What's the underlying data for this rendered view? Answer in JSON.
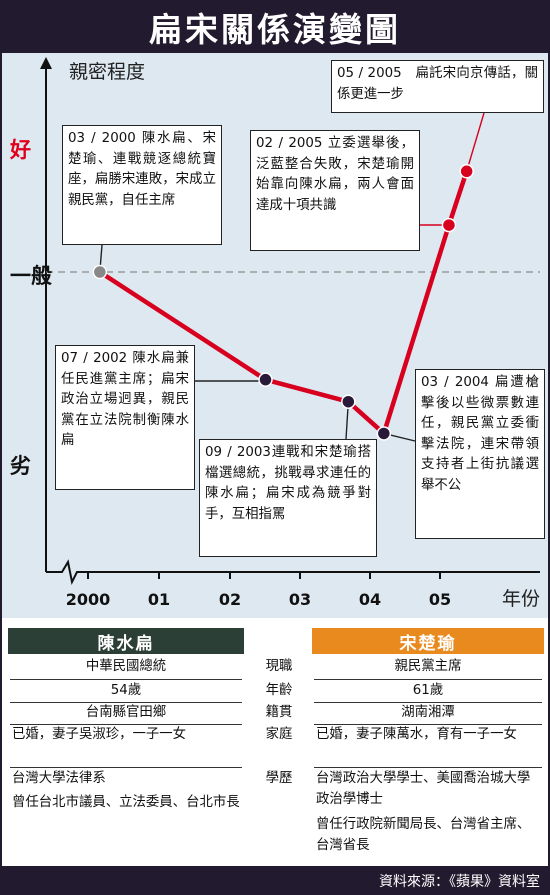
{
  "title": "扁宋關係演變圖",
  "chart_data": {
    "type": "line",
    "ylabel": "親密程度",
    "xlabel": "年份",
    "x_ticks": [
      "2000",
      "01",
      "02",
      "03",
      "04",
      "05"
    ],
    "y_levels": [
      "好",
      "一般",
      "劣"
    ],
    "xlim": [
      "2000-01",
      "2005-12"
    ],
    "ylim": [
      -1.8,
      1.5
    ],
    "reference_line": {
      "y": 0,
      "style": "dashed"
    },
    "points": [
      {
        "x": "2000-03",
        "y": 0.0
      },
      {
        "x": "2002-07",
        "y": -0.78
      },
      {
        "x": "2003-09",
        "y": -0.94
      },
      {
        "x": "2004-03",
        "y": -1.17
      },
      {
        "x": "2005-02",
        "y": 0.34
      },
      {
        "x": "2005-05",
        "y": 0.73
      }
    ],
    "colors": {
      "line": "#d8001f",
      "start_point": "#888888",
      "point": "#2a1a3a"
    }
  },
  "annotations": [
    "03 / 2000 陳水扁、宋楚瑜、連戰競逐總統寶座，扁勝宋連敗，宋成立親民黨，自任主席",
    "07 / 2002 陳水扁兼任民進黨主席；扁宋政治立場迥異，親民黨在立法院制衡陳水扁",
    "09 / 2003連戰和宋楚瑜搭檔選總統，挑戰尋求連任的陳水扁；扁宋成為競爭對手，互相指罵",
    "03 / 2004 扁遭槍擊後以些微票數連任，親民黨立委衝擊法院，連宋帶領支持者上街抗議選舉不公",
    "02 / 2005 立委選舉後，泛藍整合失敗，宋楚瑜開始靠向陳水扁，兩人會面達成十項共識",
    "05 / 2005　扁託宋向京傳話，關係更進一步"
  ],
  "profile": {
    "left_name": "陳水扁",
    "right_name": "宋楚瑜",
    "rows": [
      {
        "label": "現職",
        "left": "中華民國總統",
        "right": "親民黨主席"
      },
      {
        "label": "年齡",
        "left": "54歲",
        "right": "61歲"
      },
      {
        "label": "籍貫",
        "left": "台南縣官田鄉",
        "right": "湖南湘潭"
      },
      {
        "label": "家庭",
        "left": "已婚，妻子吳淑珍，一子一女",
        "right": "已婚，妻子陳萬水，育有一子一女"
      },
      {
        "label": "學歷",
        "left": "台灣大學法律系",
        "right": "台灣政治大學學士、美國喬治城大學政治學博士"
      }
    ],
    "left_career": "曾任台北市議員、立法委員、台北市長",
    "right_career": "曾任行政院新聞局長、台灣省主席、台灣省長"
  },
  "source": "資料來源：《蘋果》資料室"
}
